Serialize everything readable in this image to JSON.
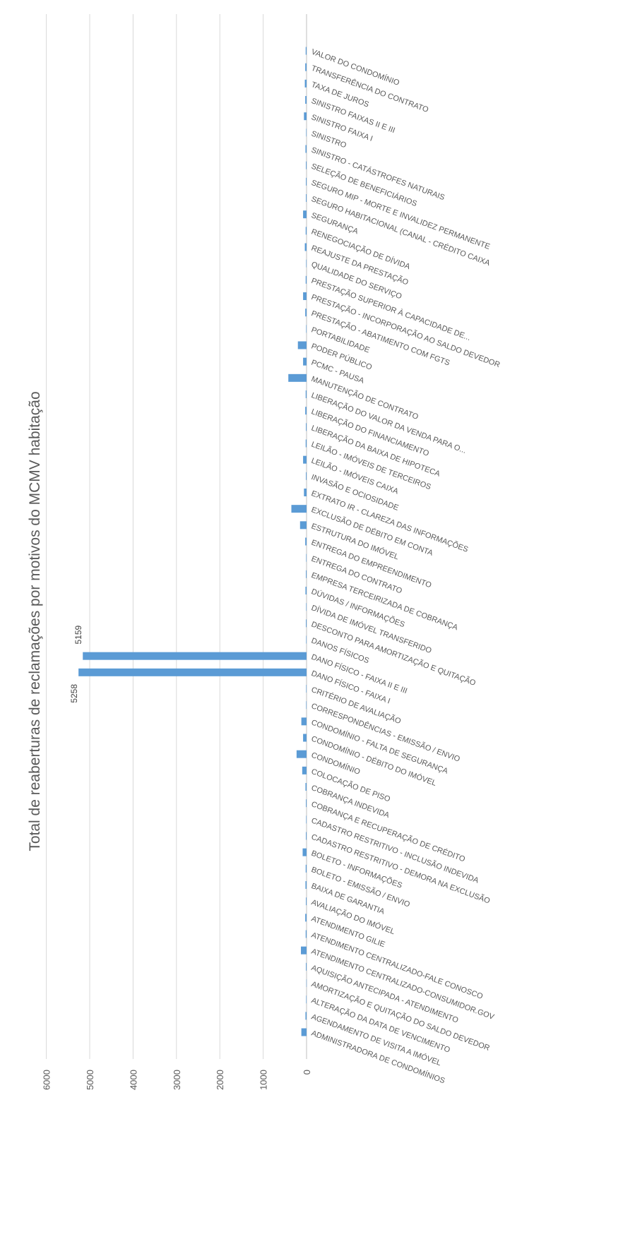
{
  "chart_data": {
    "type": "bar",
    "orientation": "horizontal",
    "title": "Total de reaberturas de reclamações por motivos do MCMV habitação",
    "xlim": [
      0,
      6000
    ],
    "ticks": [
      0,
      1000,
      2000,
      3000,
      4000,
      5000,
      6000
    ],
    "grid": true,
    "legend": "none",
    "bar_color": "#5b9bd5",
    "categories": [
      "ADMINISTRADORA DE CONDOMÍNIOS",
      "AGENDAMENTO DE VISITA A IMÓVEL",
      "ALTERAÇÃO DA DATA DE VENCIMENTO",
      "AMORTIZAÇÃO E QUITAÇÃO DO SALDO DEVEDOR",
      "AQUISIÇÃO ANTECIPADA - ATENDIMENTO",
      "ATENDIMENTO CENTRALIZADO-CONSUMIDOR.GOV",
      "ATENDIMENTO CENTRALIZADO-FALE CONOSCO",
      "ATENDIMENTO GILIE",
      "AVALIAÇÃO DO IMÓVEL",
      "BAIXA DE GARANTIA",
      "BOLETO - EMISSÃO / ENVIO",
      "BOLETO - INFORMAÇÕES",
      "CADASTRO RESTRITIVO - DEMORA NA EXCLUSÃO",
      "CADASTRO RESTRITIVO - INCLUSÃO INDEVIDA",
      "COBRANÇA E RECUPERAÇÃO DE CRÉDITO",
      "COBRANÇA INDEVIDA",
      "COLOCAÇÃO DE PISO",
      "CONDOMÍNIO",
      "CONDOMÍNIO - DÉBITO DO IMÓVEL",
      "CONDOMÍNIO - FALTA DE SEGURANÇA",
      "CORRESPONDÊNCIAS - EMISSÃO / ENVIO",
      "CRITÉRIO DE AVALIAÇÃO",
      "DANO FÍSICO - FAIXA I",
      "DANO FÍSICO - FAIXA II E III",
      "DANOS FÍSICOS",
      "DESCONTO PARA AMORTIZAÇÃO E QUITAÇÃO",
      "DÍVIDA DE IMÓVEL TRANSFERIDO",
      "DÚVIDAS / INFORMAÇÕES",
      "EMPRESA TERCEIRIZADA DE COBRANÇA",
      "ENTREGA DO CONTRATO",
      "ENTREGA DO EMPREENDIMENTO",
      "ESTRUTURA DO IMÓVEL",
      "EXCLUSÃO DE DÉBITO EM CONTA",
      "EXTRATO IR - CLAREZA DAS INFORMAÇÕES",
      "INVASÃO E OCIOSIDADE",
      "LEILÃO - IMÓVEIS CAIXA",
      "LEILÃO - IMÓVEIS DE TERCEIROS",
      "LIBERAÇÃO DA BAIXA DE HIPOTECA",
      "LIBERAÇÃO DO FINANCIAMENTO",
      "LIBERAÇÃO DO VALOR DA VENDA PARA O...",
      "MANUTENÇÃO DE CONTRATO",
      "PCMC - PAUSA",
      "PODER PÚBLICO",
      "PORTABILIDADE",
      "PRESTAÇÃO - ABATIMENTO COM FGTS",
      "PRESTAÇÃO - INCORPORAÇÃO AO SALDO DEVEDOR",
      "PRESTAÇÃO SUPERIOR À CAPACIDADE DE...",
      "QUALIDADE DO SERVIÇO",
      "REAJUSTE DA PRESTAÇÃO",
      "RENEGOCIAÇÃO DE DÍVIDA",
      "SEGURANÇA",
      "SEGURO HABITACIONAL (CANAL - CRÉDITO CAIXA",
      "SEGURO MIP - MORTE E INVALIDEZ PERMANENTE",
      "SELEÇÃO DE BENEFICIÁRIOS",
      "SINISTRO - CATÁSTROFES NATURAIS",
      "SINISTRO",
      "SINISTRO FAIXA I",
      "SINISTRO FAIXAS II E III",
      "TAXA DE JUROS",
      "TRANSFERÊNCIA DO CONTRATO",
      "VALOR DO CONDOMÍNIO"
    ],
    "values": [
      120,
      25,
      10,
      5,
      15,
      130,
      20,
      30,
      15,
      25,
      20,
      90,
      15,
      10,
      15,
      25,
      100,
      230,
      80,
      120,
      10,
      10,
      5258,
      5159,
      10,
      15,
      10,
      25,
      15,
      10,
      30,
      150,
      350,
      60,
      15,
      80,
      20,
      15,
      30,
      20,
      420,
      80,
      200,
      10,
      30,
      80,
      20,
      10,
      40,
      20,
      80,
      15,
      15,
      15,
      25,
      10,
      60,
      30,
      40,
      30,
      20
    ],
    "data_labels": [
      {
        "category": "DANO FÍSICO - FAIXA I",
        "text": "5258"
      },
      {
        "category": "DANO FÍSICO - FAIXA II E III",
        "text": "5159"
      }
    ]
  }
}
